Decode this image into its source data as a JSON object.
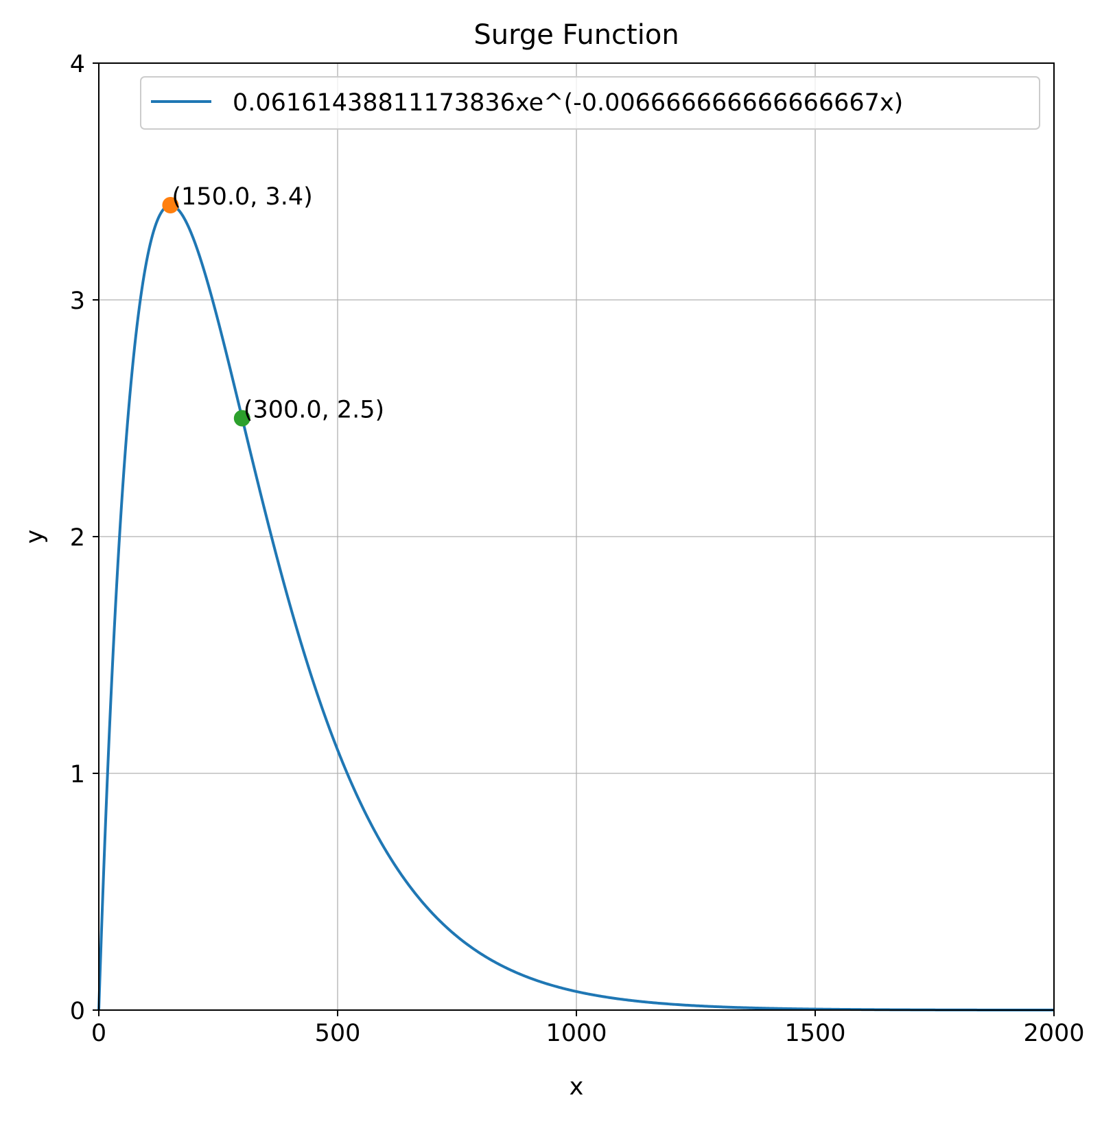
{
  "chart_data": {
    "type": "line",
    "title": "Surge Function",
    "xlabel": "x",
    "ylabel": "y",
    "xlim": [
      0,
      2000
    ],
    "ylim": [
      0,
      4
    ],
    "grid": true,
    "legend_position": "top-right",
    "xticks": [
      0,
      500,
      1000,
      1500,
      2000
    ],
    "xtick_labels": [
      "0",
      "500",
      "1000",
      "1500",
      "2000"
    ],
    "yticks": [
      0,
      1,
      2,
      3,
      4
    ],
    "ytick_labels": [
      "0",
      "1",
      "2",
      "3",
      "4"
    ],
    "series": [
      {
        "name": "0.06161438811173836xe^(-0.006666666666666667x)",
        "color": "#1f77b4",
        "function": {
          "a": 0.06161438811173836,
          "b": 0.006666666666666667
        },
        "x_range": [
          0,
          2000
        ]
      }
    ],
    "points": [
      {
        "x": 150.0,
        "y": 3.4,
        "label": "(150.0, 3.4)",
        "color": "#ff7f0e"
      },
      {
        "x": 300.0,
        "y": 2.5,
        "label": "(300.0, 2.5)",
        "color": "#2ca02c"
      }
    ]
  }
}
